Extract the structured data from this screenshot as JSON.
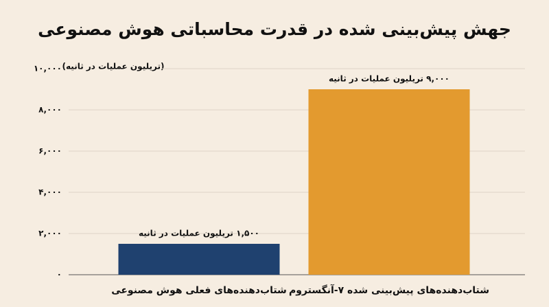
{
  "chart_data": {
    "type": "bar",
    "title": "جهش پیش‌بینی شده در قدرت محاسباتی هوش مصنوعی",
    "y_label": "(تریلیون عملیات در ثانیه)",
    "categories": [
      "شتاب‌دهنده‌های فعلی هوش مصنوعی",
      "شتاب‌دهنده‌های پیش‌بینی شده ۷-آنگستروم"
    ],
    "values": [
      1500,
      9000
    ],
    "value_labels": [
      "۱,۵۰۰ تریلیون عملیات در ثانیه",
      "۹,۰۰۰ تریلیون عملیات در ثانیه"
    ],
    "colors": [
      "#1f416f",
      "#e39a2f"
    ],
    "ylim": [
      0,
      10000
    ],
    "yticks": [
      {
        "value": 0,
        "label": "۰"
      },
      {
        "value": 2000,
        "label": "۲,۰۰۰"
      },
      {
        "value": 4000,
        "label": "۴,۰۰۰"
      },
      {
        "value": 6000,
        "label": "۶,۰۰۰"
      },
      {
        "value": 8000,
        "label": "۸,۰۰۰"
      },
      {
        "value": 10000,
        "label": "۱۰,۰۰۰"
      }
    ],
    "grid": true
  }
}
